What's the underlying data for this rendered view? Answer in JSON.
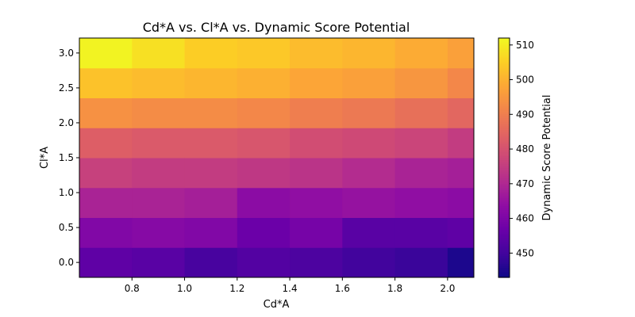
{
  "chart_data": {
    "type": "heatmap",
    "title": "Cd*A vs. Cl*A vs. Dynamic Score Potential",
    "xlabel": "Cd*A",
    "ylabel": "Cl*A",
    "colorbar_label": "Dynamic Score Potential",
    "colormap": "plasma",
    "x_edges": [
      0.6,
      0.8,
      1.0,
      1.2,
      1.4,
      1.6,
      1.8,
      2.0,
      2.1
    ],
    "x_centers": [
      0.7,
      0.9,
      1.1,
      1.3,
      1.5,
      1.7,
      1.9,
      2.05
    ],
    "y_centers": [
      0.0,
      0.4286,
      0.8571,
      1.2857,
      1.7143,
      2.1429,
      2.5714,
      3.0
    ],
    "xlim": [
      0.6,
      2.1
    ],
    "ylim": [
      -0.2143,
      3.2143
    ],
    "xticks": [
      "0.8",
      "1.0",
      "1.2",
      "1.4",
      "1.6",
      "1.8",
      "2.0"
    ],
    "yticks": [
      "0.0",
      "0.5",
      "1.0",
      "1.5",
      "2.0",
      "2.5",
      "3.0"
    ],
    "cbar_ticks": [
      "450",
      "460",
      "470",
      "480",
      "490",
      "500",
      "510"
    ],
    "cbar_range": [
      443,
      512
    ],
    "values": [
      [
        455,
        454,
        451,
        453,
        452,
        450,
        449,
        445
      ],
      [
        461,
        462,
        461,
        457,
        459,
        454,
        454,
        455
      ],
      [
        469,
        469,
        468,
        463,
        464,
        465,
        464,
        463
      ],
      [
        476,
        475,
        475,
        474,
        473,
        471,
        469,
        468
      ],
      [
        483,
        482,
        482,
        481,
        479,
        478,
        477,
        475
      ],
      [
        494,
        493,
        493,
        492,
        490,
        489,
        487,
        485
      ],
      [
        503,
        502,
        501,
        500,
        498,
        497,
        495,
        492
      ],
      [
        511,
        508,
        505,
        504,
        502,
        501,
        499,
        497
      ]
    ]
  }
}
